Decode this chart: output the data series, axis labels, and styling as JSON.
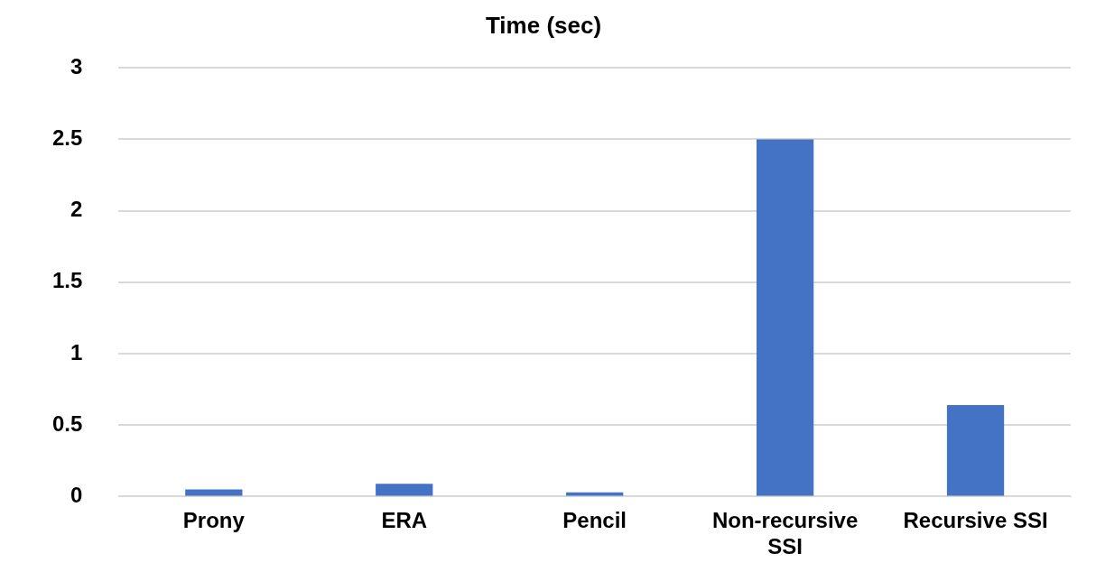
{
  "chart_data": {
    "type": "bar",
    "title": "Time (sec)",
    "categories": [
      "Prony",
      "ERA",
      "Pencil",
      "Non-recursive SSI",
      "Recursive SSI"
    ],
    "values": [
      0.05,
      0.09,
      0.03,
      2.5,
      0.64
    ],
    "color": "#4472c4",
    "ylim": [
      0,
      3
    ],
    "yticks": [
      0,
      0.5,
      1,
      1.5,
      2,
      2.5,
      3
    ],
    "grid": "y",
    "legend": false
  }
}
